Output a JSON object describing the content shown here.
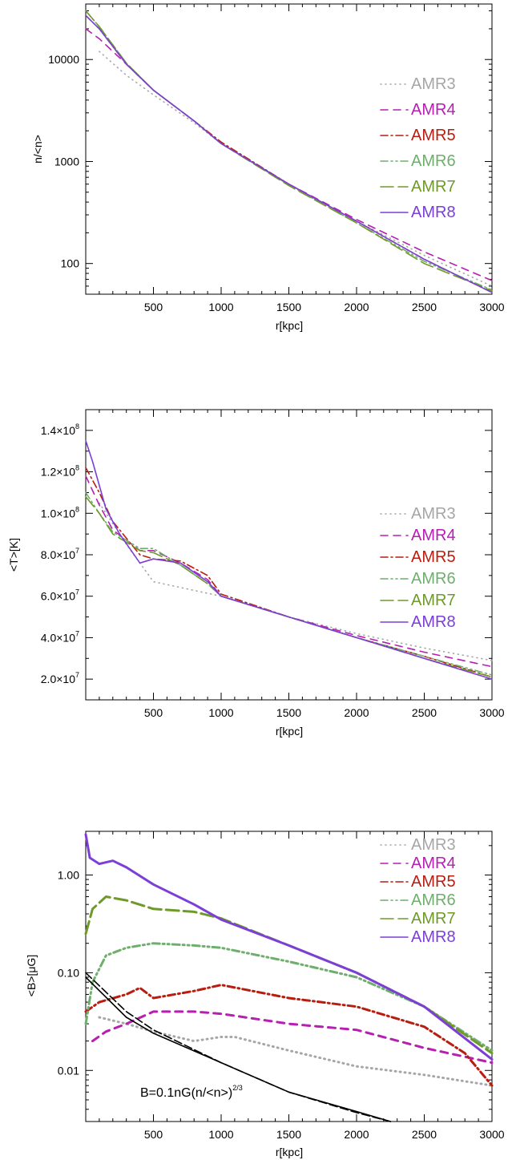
{
  "legend_labels": [
    "AMR3",
    "AMR4",
    "AMR5",
    "AMR6",
    "AMR7",
    "AMR8"
  ],
  "series_colors": {
    "AMR3": "#a6a6a6",
    "AMR4": "#b61fb2",
    "AMR5": "#b81d10",
    "AMR6": "#6fae6d",
    "AMR7": "#6f9a2a",
    "AMR8": "#7c3fd6"
  },
  "chart_data": [
    {
      "type": "line",
      "ylabel": "n/<n>",
      "xlabel": "r[kpc]",
      "yscale": "log",
      "xlim": [
        0,
        3000
      ],
      "ylim": [
        50,
        35000
      ],
      "x_tick_labels": [
        "500",
        "1000",
        "1500",
        "2000",
        "2500",
        "3000"
      ],
      "y_tick_labels": [
        "10000",
        "1000",
        "100"
      ],
      "legend_position": "right",
      "series": [
        {
          "name": "AMR3",
          "x": [
            100,
            300,
            500,
            800,
            1000,
            1500,
            2000,
            2500,
            3000
          ],
          "y": [
            12000,
            7000,
            4500,
            2400,
            1500,
            600,
            260,
            120,
            60
          ]
        },
        {
          "name": "AMR4",
          "x": [
            0,
            100,
            300,
            500,
            800,
            1000,
            1500,
            2000,
            2500,
            3000
          ],
          "y": [
            20000,
            16000,
            9000,
            5000,
            2500,
            1500,
            600,
            270,
            130,
            68
          ]
        },
        {
          "name": "AMR5",
          "x": [
            0,
            100,
            300,
            500,
            800,
            1000,
            1500,
            2000,
            2500,
            3000
          ],
          "y": [
            27000,
            20000,
            9000,
            5000,
            2500,
            1550,
            600,
            260,
            110,
            52
          ]
        },
        {
          "name": "AMR6",
          "x": [
            0,
            100,
            300,
            500,
            800,
            1000,
            1500,
            2000,
            2500,
            3000
          ],
          "y": [
            30000,
            21000,
            9200,
            5000,
            2500,
            1500,
            590,
            250,
            105,
            55
          ]
        },
        {
          "name": "AMR7",
          "x": [
            0,
            100,
            300,
            500,
            800,
            1000,
            1500,
            2000,
            2500,
            3000
          ],
          "y": [
            30000,
            21000,
            9200,
            5000,
            2500,
            1500,
            580,
            250,
            100,
            54
          ]
        },
        {
          "name": "AMR8",
          "x": [
            0,
            100,
            300,
            500,
            800,
            1000,
            1500,
            2000,
            2500,
            3000
          ],
          "y": [
            27000,
            20000,
            9000,
            5000,
            2500,
            1500,
            600,
            260,
            110,
            52
          ]
        }
      ]
    },
    {
      "type": "line",
      "ylabel": "<T>[K]",
      "xlabel": "r[kpc]",
      "yscale": "linear",
      "xlim": [
        0,
        3000
      ],
      "ylim": [
        10000000,
        150000000
      ],
      "x_tick_labels": [
        "500",
        "1000",
        "1500",
        "2000",
        "2500",
        "3000"
      ],
      "y_tick_values": [
        20000000,
        40000000,
        60000000,
        80000000,
        100000000,
        120000000,
        140000000
      ],
      "y_tick_mantissas": [
        "2.0",
        "4.0",
        "6.0",
        "8.0",
        "1.0",
        "1.2",
        "1.4"
      ],
      "y_tick_exponents": [
        "7",
        "7",
        "7",
        "7",
        "8",
        "8",
        "8"
      ],
      "y_tick_times": "×10",
      "legend_position": "right",
      "series": [
        {
          "name": "AMR3",
          "x": [
            100,
            300,
            500,
            1000,
            1500,
            2000,
            2500,
            3000
          ],
          "y": [
            105000000,
            85000000,
            67000000,
            60000000,
            50000000,
            42000000,
            35000000,
            29000000
          ]
        },
        {
          "name": "AMR4",
          "x": [
            0,
            100,
            200,
            400,
            500,
            700,
            900,
            1000,
            1500,
            2000,
            2500,
            3000
          ],
          "y": [
            118000000,
            104000000,
            92000000,
            82000000,
            82000000,
            76000000,
            68000000,
            60000000,
            50000000,
            41000000,
            33000000,
            26000000
          ]
        },
        {
          "name": "AMR5",
          "x": [
            0,
            100,
            200,
            400,
            500,
            700,
            900,
            1000,
            1500,
            2000,
            2500,
            3000
          ],
          "y": [
            122000000,
            110000000,
            96000000,
            80000000,
            78000000,
            77000000,
            70000000,
            61000000,
            50000000,
            40000000,
            31000000,
            21000000
          ]
        },
        {
          "name": "AMR6",
          "x": [
            0,
            100,
            200,
            400,
            500,
            700,
            900,
            1000,
            1500,
            2000,
            2500,
            3000
          ],
          "y": [
            110000000,
            100000000,
            91000000,
            83000000,
            83000000,
            75000000,
            66000000,
            60000000,
            50000000,
            40000000,
            31000000,
            22000000
          ]
        },
        {
          "name": "AMR7",
          "x": [
            0,
            100,
            200,
            400,
            500,
            700,
            900,
            1000,
            1500,
            2000,
            2500,
            3000
          ],
          "y": [
            108000000,
            100000000,
            90000000,
            82000000,
            81000000,
            75000000,
            66000000,
            60000000,
            50000000,
            40000000,
            30000000,
            21000000
          ]
        },
        {
          "name": "AMR8",
          "x": [
            0,
            50,
            150,
            250,
            400,
            500,
            700,
            900,
            1000,
            1500,
            2000,
            2500,
            3000
          ],
          "y": [
            135000000,
            125000000,
            102000000,
            90000000,
            76000000,
            78000000,
            76000000,
            67000000,
            60000000,
            50000000,
            40000000,
            30000000,
            20000000
          ]
        }
      ]
    },
    {
      "type": "line",
      "ylabel": "<B>[μG]",
      "xlabel": "r[kpc]",
      "yscale": "log",
      "xlim": [
        0,
        3000
      ],
      "ylim": [
        0.003,
        2.8
      ],
      "x_tick_labels": [
        "500",
        "1000",
        "1500",
        "2000",
        "2500",
        "3000"
      ],
      "y_tick_labels": [
        "1.00",
        "0.10",
        "0.01"
      ],
      "legend_position": "top-right",
      "annotation_base": "B=0.1nG(n/<n>)",
      "annotation_exponent": "2/3",
      "series": [
        {
          "name": "AMR3",
          "x": [
            100,
            300,
            500,
            800,
            1000,
            1100,
            1500,
            2000,
            2500,
            3000
          ],
          "y": [
            0.035,
            0.03,
            0.025,
            0.02,
            0.022,
            0.022,
            0.016,
            0.011,
            0.009,
            0.007
          ]
        },
        {
          "name": "AMR4",
          "x": [
            50,
            150,
            300,
            500,
            800,
            1000,
            1500,
            2000,
            2500,
            3000
          ],
          "y": [
            0.02,
            0.025,
            0.03,
            0.04,
            0.04,
            0.038,
            0.03,
            0.026,
            0.017,
            0.012
          ]
        },
        {
          "name": "AMR5",
          "x": [
            0,
            100,
            300,
            400,
            500,
            800,
            1000,
            1500,
            2000,
            2500,
            2800,
            3000
          ],
          "y": [
            0.04,
            0.05,
            0.06,
            0.07,
            0.055,
            0.065,
            0.075,
            0.055,
            0.045,
            0.028,
            0.015,
            0.007
          ]
        },
        {
          "name": "AMR6",
          "x": [
            0,
            50,
            150,
            300,
            500,
            800,
            1000,
            1500,
            2000,
            2500,
            3000
          ],
          "y": [
            0.03,
            0.08,
            0.15,
            0.18,
            0.2,
            0.19,
            0.18,
            0.13,
            0.09,
            0.045,
            0.016
          ]
        },
        {
          "name": "AMR7",
          "x": [
            0,
            50,
            150,
            300,
            500,
            800,
            1000,
            1500,
            2000,
            2500,
            3000
          ],
          "y": [
            0.25,
            0.45,
            0.6,
            0.55,
            0.45,
            0.42,
            0.36,
            0.19,
            0.1,
            0.045,
            0.015
          ]
        },
        {
          "name": "AMR8",
          "x": [
            0,
            30,
            100,
            200,
            300,
            500,
            800,
            1000,
            1500,
            2000,
            2500,
            3000
          ],
          "y": [
            2.6,
            1.5,
            1.3,
            1.4,
            1.2,
            0.8,
            0.5,
            0.35,
            0.19,
            0.1,
            0.045,
            0.013
          ]
        },
        {
          "name": "",
          "x": [
            0,
            300,
            500,
            1000,
            1500,
            2000,
            2250
          ],
          "y": [
            0.09,
            0.035,
            0.024,
            0.012,
            0.006,
            0.0038,
            0.003
          ]
        },
        {
          "name": "",
          "x": [
            0,
            300,
            500,
            1000,
            1500,
            2000,
            2250
          ],
          "y": [
            0.1,
            0.04,
            0.026,
            0.012,
            0.006,
            0.0037,
            0.003
          ]
        }
      ]
    }
  ]
}
